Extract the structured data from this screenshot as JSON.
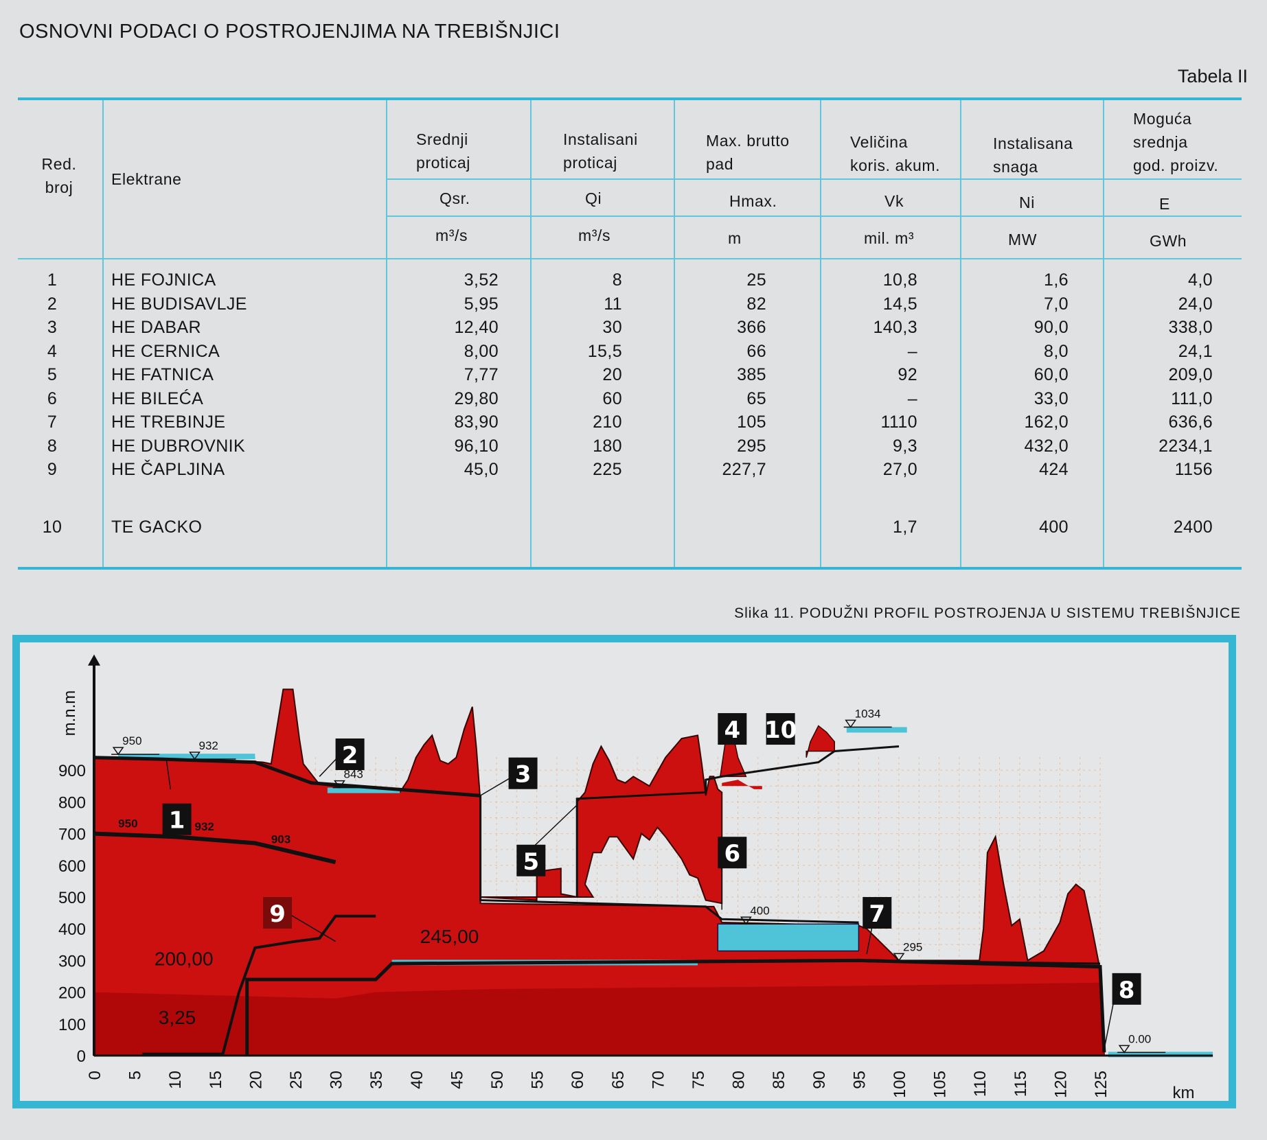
{
  "title": "OSNOVNI PODACI O POSTROJENJIMA NA TREBIŠNJICI",
  "table_label": "Tabela II",
  "table": {
    "headers": [
      {
        "key": "red",
        "label": "Red.\nbroj"
      },
      {
        "key": "name",
        "label": "Elektrane"
      },
      {
        "key": "q",
        "label": "Srednji\nproticaj",
        "symbol": "Qsr.",
        "unit": "m³/s"
      },
      {
        "key": "qi",
        "label": "Instalisani\nproticaj",
        "symbol": "Qi",
        "unit": "m³/s"
      },
      {
        "key": "h",
        "label": "Max. brutto\npad",
        "symbol": "Hmax.",
        "unit": "m"
      },
      {
        "key": "vk",
        "label": "Veličina\nkoris. akum.",
        "symbol": "Vk",
        "unit": "mil. m³"
      },
      {
        "key": "ni",
        "label": "Instalisana\nsnaga",
        "symbol": "Ni",
        "unit": "MW"
      },
      {
        "key": "e",
        "label": "Moguća\nsrednja\ngod. proizv.",
        "symbol": "E",
        "unit": "GWh"
      }
    ],
    "rows": [
      {
        "red": "1",
        "name": "HE FOJNICA",
        "q": "3,52",
        "qi": "8",
        "h": "25",
        "vk": "10,8",
        "ni": "1,6",
        "e": "4,0"
      },
      {
        "red": "2",
        "name": "HE BUDISAVLJE",
        "q": "5,95",
        "qi": "11",
        "h": "82",
        "vk": "14,5",
        "ni": "7,0",
        "e": "24,0"
      },
      {
        "red": "3",
        "name": "HE DABAR",
        "q": "12,40",
        "qi": "30",
        "h": "366",
        "vk": "140,3",
        "ni": "90,0",
        "e": "338,0"
      },
      {
        "red": "4",
        "name": "HE CERNICA",
        "q": "8,00",
        "qi": "15,5",
        "h": "66",
        "vk": "–",
        "ni": "8,0",
        "e": "24,1"
      },
      {
        "red": "5",
        "name": "HE FATNICA",
        "q": "7,77",
        "qi": "20",
        "h": "385",
        "vk": "92",
        "ni": "60,0",
        "e": "209,0"
      },
      {
        "red": "6",
        "name": "HE BILEĆA",
        "q": "29,80",
        "qi": "60",
        "h": "65",
        "vk": "–",
        "ni": "33,0",
        "e": "111,0"
      },
      {
        "red": "7",
        "name": "HE TREBINJE",
        "q": "83,90",
        "qi": "210",
        "h": "105",
        "vk": "1110",
        "ni": "162,0",
        "e": "636,6"
      },
      {
        "red": "8",
        "name": "HE DUBROVNIK",
        "q": "96,10",
        "qi": "180",
        "h": "295",
        "vk": "9,3",
        "ni": "432,0",
        "e": "2234,1"
      },
      {
        "red": "9",
        "name": "HE ČAPLJINA",
        "q": "45,0",
        "qi": "225",
        "h": "227,7",
        "vk": "27,0",
        "ni": "424",
        "e": "1156"
      }
    ],
    "extra_row": {
      "red": "10",
      "name": "TE GACKO",
      "q": "",
      "qi": "",
      "h": "",
      "vk": "1,7",
      "ni": "400",
      "e": "2400"
    }
  },
  "figure": {
    "caption": "Slika 11. PODUŽNI PROFIL POSTROJENJA U SISTEMU TREBIŠNJICE",
    "y_label": "m.n.m",
    "y_ticks": [
      "0",
      "100",
      "200",
      "300",
      "400",
      "500",
      "600",
      "700",
      "800",
      "900"
    ],
    "x_ticks": [
      "0",
      "5",
      "10",
      "15",
      "20",
      "25",
      "30",
      "35",
      "40",
      "45",
      "50",
      "55",
      "60",
      "65",
      "70",
      "75",
      "80",
      "85",
      "90",
      "95",
      "100",
      "105",
      "110",
      "115",
      "120",
      "125"
    ],
    "x_unit": "km",
    "levels": [
      "950",
      "932",
      "843",
      "1034",
      "400",
      "295",
      "0.00",
      "950",
      "932",
      "903"
    ],
    "pipe_levels": [
      "200,00",
      "245,00",
      "3,25"
    ],
    "plant_markers": [
      "1",
      "2",
      "3",
      "4",
      "10",
      "5",
      "6",
      "7",
      "8",
      "9"
    ],
    "colors": {
      "terrain": "#cc1010",
      "frame": "#35b6d3",
      "water": "#4fc3d8",
      "grid": "#f0a060"
    }
  }
}
